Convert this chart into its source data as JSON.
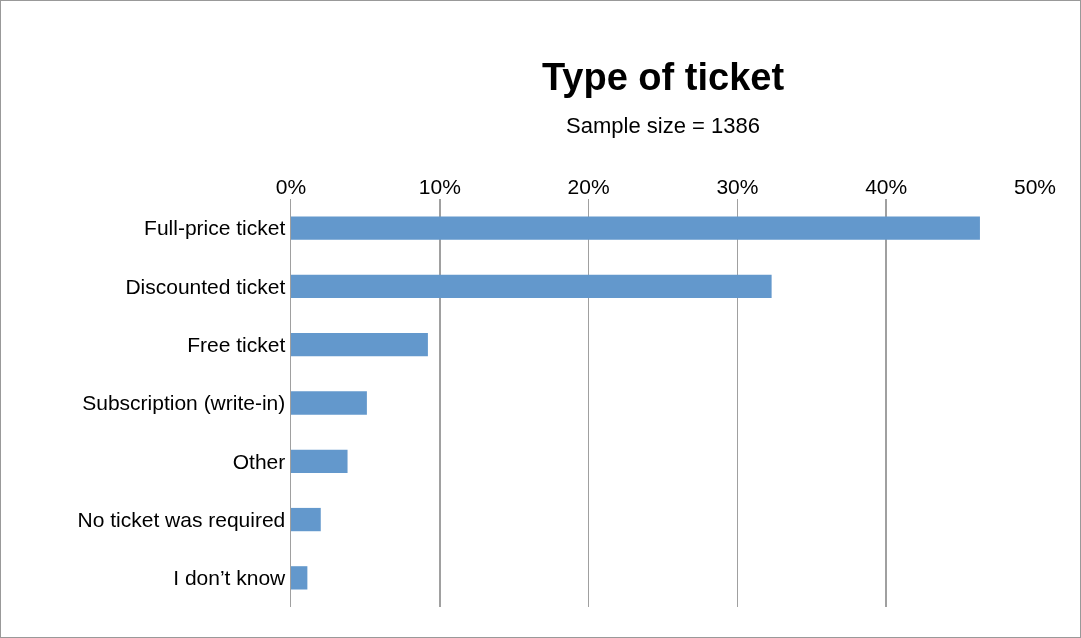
{
  "chart_data": {
    "type": "bar",
    "title": "Type of ticket",
    "subtitle": "Sample size = 1386",
    "orientation": "horizontal",
    "categories": [
      "Full-price ticket",
      "Discounted ticket",
      "Free ticket",
      "Subscription (write-in)",
      "Other",
      "No ticket was required",
      "I don’t know"
    ],
    "values": [
      46.3,
      32.3,
      9.2,
      5.1,
      3.8,
      2.0,
      1.1
    ],
    "color": "#6398cc",
    "xlim": [
      0,
      50
    ],
    "xticks": [
      {
        "value": 0,
        "label": "0%"
      },
      {
        "value": 10,
        "label": "10%"
      },
      {
        "value": 20,
        "label": "20%"
      },
      {
        "value": 30,
        "label": "30%"
      },
      {
        "value": 40,
        "label": "40%"
      },
      {
        "value": 50,
        "label": "50%"
      }
    ],
    "grid": "x"
  }
}
